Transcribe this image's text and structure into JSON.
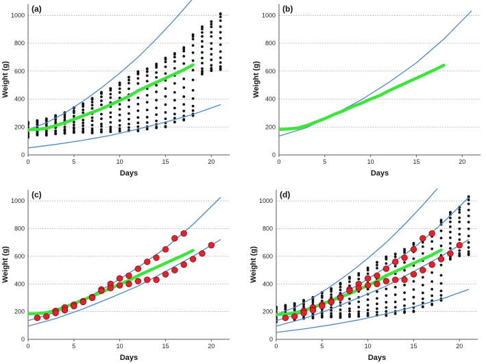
{
  "figure": {
    "panels": [
      "(a)",
      "(b)",
      "(c)",
      "(d)"
    ],
    "xlabel": "Days",
    "ylabel": "Weight  (g)"
  },
  "colors": {
    "blue_curve": "#4a86c6",
    "green_fit": "#39e639",
    "dots": "#111111",
    "red_fill": "#e8202a",
    "red_edge": "#7a1010",
    "grid": "#9a9a9a",
    "axis": "#555555"
  },
  "chart_data": [
    {
      "panel": "(a)",
      "type": "scatter",
      "xlabel": "Days",
      "ylabel": "Weight  (g)",
      "xlim": [
        0,
        22
      ],
      "ylim": [
        0,
        1080
      ],
      "xticks": [
        0,
        5,
        10,
        15,
        20
      ],
      "yticks": [
        0,
        200,
        400,
        600,
        800,
        1000
      ],
      "grid": "horizontal dotted",
      "series": [
        {
          "name": "individual weights",
          "kind": "dots",
          "days": [
            0,
            1,
            2,
            3,
            4,
            5,
            6,
            7,
            8,
            9,
            10,
            11,
            12,
            13,
            14,
            15,
            16,
            17,
            18,
            19,
            20,
            21
          ],
          "ranges": [
            [
              130,
              235
            ],
            [
              140,
              245
            ],
            [
              145,
              255
            ],
            [
              150,
              280
            ],
            [
              155,
              305
            ],
            [
              160,
              340
            ],
            [
              160,
              370
            ],
            [
              160,
              410
            ],
            [
              165,
              450
            ],
            [
              165,
              480
            ],
            [
              170,
              520
            ],
            [
              170,
              560
            ],
            [
              175,
              600
            ],
            [
              180,
              620
            ],
            [
              190,
              650
            ],
            [
              200,
              690
            ],
            [
              230,
              730
            ],
            [
              250,
              770
            ],
            [
              280,
              860
            ],
            [
              580,
              920
            ],
            [
              600,
              960
            ],
            [
              610,
              1010
            ]
          ]
        },
        {
          "name": "green mean trajectory",
          "kind": "fit",
          "x": [
            0,
            1,
            2,
            3,
            4,
            5,
            6,
            7,
            8,
            9,
            10,
            11,
            12,
            13,
            14,
            15,
            16,
            17,
            18
          ],
          "y": [
            180,
            182,
            190,
            210,
            230,
            255,
            280,
            305,
            330,
            360,
            390,
            420,
            460,
            490,
            520,
            550,
            580,
            610,
            645
          ]
        },
        {
          "name": "upper bound",
          "kind": "curve",
          "x": [
            0,
            2,
            4,
            6,
            8,
            10,
            12,
            14,
            16,
            18
          ],
          "y": [
            180,
            230,
            300,
            385,
            480,
            585,
            700,
            830,
            970,
            1120
          ]
        },
        {
          "name": "lower bound",
          "kind": "curve",
          "x": [
            0,
            3,
            6,
            9,
            12,
            15,
            18,
            21
          ],
          "y": [
            50,
            75,
            105,
            140,
            185,
            235,
            290,
            360
          ]
        }
      ]
    },
    {
      "panel": "(b)",
      "type": "line",
      "xlabel": "Days",
      "ylabel": "Weight  (g)",
      "xlim": [
        0,
        22
      ],
      "ylim": [
        0,
        1080
      ],
      "xticks": [
        0,
        5,
        10,
        15,
        20
      ],
      "yticks": [
        0,
        200,
        400,
        600,
        800,
        1000
      ],
      "grid": "horizontal dotted",
      "series": [
        {
          "name": "green mean trajectory",
          "kind": "fit",
          "x": [
            0,
            1,
            2,
            3,
            4,
            5,
            6,
            7,
            8,
            9,
            10,
            11,
            12,
            13,
            14,
            15,
            16,
            17,
            18
          ],
          "y": [
            183,
            185,
            192,
            210,
            235,
            260,
            290,
            315,
            345,
            370,
            400,
            425,
            460,
            490,
            520,
            550,
            580,
            610,
            642
          ]
        },
        {
          "name": "blue curve",
          "kind": "curve",
          "x": [
            0,
            3,
            6,
            9,
            12,
            15,
            18,
            21
          ],
          "y": [
            135,
            195,
            290,
            395,
            520,
            660,
            830,
            1030
          ]
        }
      ]
    },
    {
      "panel": "(c)",
      "type": "scatter",
      "xlabel": "Days",
      "ylabel": "Weight  (g)",
      "xlim": [
        0,
        22
      ],
      "ylim": [
        0,
        1080
      ],
      "xticks": [
        0,
        5,
        10,
        15,
        20
      ],
      "yticks": [
        0,
        200,
        400,
        600,
        800,
        1000
      ],
      "grid": "horizontal dotted",
      "series": [
        {
          "name": "individual A",
          "kind": "markers",
          "x": [
            1,
            2,
            3,
            4,
            5,
            6,
            7,
            8,
            9,
            10,
            11,
            12,
            13,
            14,
            15,
            16,
            17
          ],
          "y": [
            155,
            165,
            205,
            230,
            250,
            275,
            305,
            360,
            400,
            440,
            460,
            510,
            560,
            590,
            650,
            730,
            765
          ]
        },
        {
          "name": "individual B",
          "kind": "markers",
          "x": [
            3,
            4,
            5,
            6,
            7,
            8,
            9,
            10,
            11,
            12,
            13,
            14,
            15,
            16,
            17,
            18,
            19,
            20
          ],
          "y": [
            190,
            210,
            240,
            270,
            300,
            350,
            370,
            390,
            400,
            420,
            430,
            430,
            470,
            500,
            540,
            580,
            620,
            680
          ]
        },
        {
          "name": "green mean trajectory",
          "kind": "fit",
          "x": [
            0,
            1,
            2,
            3,
            4,
            5,
            6,
            7,
            8,
            9,
            10,
            11,
            12,
            13,
            14,
            15,
            16,
            17,
            18
          ],
          "y": [
            185,
            186,
            192,
            210,
            233,
            258,
            285,
            312,
            340,
            368,
            398,
            426,
            460,
            490,
            520,
            550,
            580,
            610,
            642
          ]
        },
        {
          "name": "upper curve",
          "kind": "curve",
          "x": [
            0,
            3,
            6,
            9,
            12,
            15,
            18,
            21
          ],
          "y": [
            135,
            195,
            285,
            395,
            520,
            660,
            830,
            1025
          ]
        },
        {
          "name": "lower curve",
          "kind": "curve",
          "x": [
            0,
            3,
            6,
            9,
            12,
            15,
            18,
            21
          ],
          "y": [
            95,
            150,
            220,
            300,
            385,
            490,
            600,
            720
          ]
        }
      ]
    },
    {
      "panel": "(d)",
      "type": "scatter",
      "xlabel": "Days",
      "ylabel": "Weight  (g)",
      "xlim": [
        0,
        22
      ],
      "ylim": [
        0,
        1080
      ],
      "xticks": [
        0,
        5,
        10,
        15,
        20
      ],
      "yticks": [
        0,
        200,
        400,
        600,
        800,
        1000
      ],
      "grid": "horizontal dotted",
      "series": [
        {
          "name": "individual weights",
          "kind": "dots",
          "days": [
            0,
            1,
            2,
            3,
            4,
            5,
            6,
            7,
            8,
            9,
            10,
            11,
            12,
            13,
            14,
            15,
            16,
            17,
            18,
            19,
            20,
            21
          ],
          "ranges": [
            [
              130,
              235
            ],
            [
              140,
              245
            ],
            [
              145,
              255
            ],
            [
              150,
              280
            ],
            [
              155,
              305
            ],
            [
              160,
              340
            ],
            [
              160,
              370
            ],
            [
              160,
              410
            ],
            [
              165,
              450
            ],
            [
              165,
              480
            ],
            [
              170,
              520
            ],
            [
              170,
              560
            ],
            [
              175,
              600
            ],
            [
              180,
              620
            ],
            [
              190,
              650
            ],
            [
              200,
              690
            ],
            [
              230,
              730
            ],
            [
              250,
              770
            ],
            [
              280,
              860
            ],
            [
              580,
              920
            ],
            [
              600,
              960
            ],
            [
              610,
              1030
            ]
          ]
        },
        {
          "name": "individual A",
          "kind": "markers",
          "x": [
            1,
            2,
            3,
            4,
            5,
            6,
            7,
            8,
            9,
            10,
            11,
            12,
            13,
            14,
            15,
            16,
            17
          ],
          "y": [
            155,
            165,
            205,
            230,
            250,
            275,
            305,
            360,
            400,
            440,
            460,
            510,
            560,
            590,
            650,
            730,
            765
          ]
        },
        {
          "name": "individual B",
          "kind": "markers",
          "x": [
            3,
            4,
            5,
            6,
            7,
            8,
            9,
            10,
            11,
            12,
            13,
            14,
            15,
            16,
            17,
            18,
            19,
            20
          ],
          "y": [
            190,
            210,
            240,
            270,
            300,
            350,
            370,
            390,
            400,
            420,
            430,
            430,
            470,
            500,
            540,
            580,
            620,
            680
          ]
        },
        {
          "name": "green mean trajectory",
          "kind": "fit",
          "x": [
            0,
            1,
            2,
            3,
            4,
            5,
            6,
            7,
            8,
            9,
            10,
            11,
            12,
            13,
            14,
            15,
            16,
            17,
            18
          ],
          "y": [
            180,
            182,
            190,
            210,
            230,
            255,
            280,
            305,
            330,
            360,
            390,
            420,
            460,
            490,
            520,
            550,
            580,
            610,
            645
          ]
        },
        {
          "name": "upper bound",
          "kind": "curve",
          "x": [
            0,
            2,
            4,
            6,
            8,
            10,
            12,
            14,
            16,
            18
          ],
          "y": [
            180,
            230,
            300,
            385,
            480,
            585,
            700,
            830,
            970,
            1120
          ]
        },
        {
          "name": "upper curve",
          "kind": "curve",
          "x": [
            0,
            3,
            6,
            9,
            12,
            15,
            18,
            21
          ],
          "y": [
            135,
            195,
            285,
            395,
            520,
            660,
            830,
            1025
          ]
        },
        {
          "name": "lower curve",
          "kind": "curve",
          "x": [
            0,
            3,
            6,
            9,
            12,
            15,
            18,
            21
          ],
          "y": [
            95,
            150,
            220,
            300,
            385,
            490,
            600,
            720
          ]
        },
        {
          "name": "lower bound",
          "kind": "curve",
          "x": [
            0,
            3,
            6,
            9,
            12,
            15,
            18,
            21
          ],
          "y": [
            50,
            75,
            105,
            140,
            185,
            235,
            290,
            360
          ]
        }
      ]
    }
  ]
}
